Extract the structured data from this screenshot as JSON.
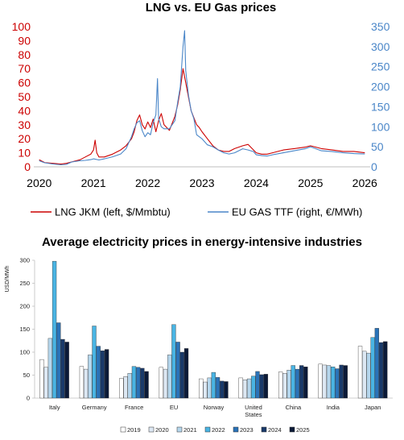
{
  "chart_data": [
    {
      "type": "line",
      "title": "LNG vs. EU Gas prices",
      "x_ticks": [
        "2020",
        "2021",
        "2022",
        "2023",
        "2024",
        "2025",
        "2026"
      ],
      "xlim": [
        2019.9,
        2026.1
      ],
      "y_left_ticks": [
        "0",
        "10",
        "20",
        "30",
        "40",
        "50",
        "60",
        "70",
        "80",
        "90",
        "100"
      ],
      "ylim_left": [
        0,
        100
      ],
      "y_right_ticks": [
        "0",
        "50",
        "100",
        "150",
        "200",
        "250",
        "300",
        "350"
      ],
      "ylim_right": [
        0,
        350
      ],
      "colors": {
        "left": "#cc0000",
        "right": "#4a86c8"
      },
      "grid": false,
      "legend_position": "bottom",
      "series": [
        {
          "name": "LNG JKM (left, $/Mmbtu)",
          "axis": "left",
          "color": "#cc0000",
          "x": [
            2020.0,
            2020.1,
            2020.25,
            2020.4,
            2020.5,
            2020.6,
            2020.75,
            2020.85,
            2020.95,
            2021.0,
            2021.03,
            2021.06,
            2021.1,
            2021.2,
            2021.35,
            2021.5,
            2021.6,
            2021.7,
            2021.75,
            2021.8,
            2021.85,
            2021.9,
            2021.95,
            2022.0,
            2022.05,
            2022.1,
            2022.15,
            2022.2,
            2022.25,
            2022.3,
            2022.4,
            2022.5,
            2022.55,
            2022.6,
            2022.65,
            2022.7,
            2022.75,
            2022.8,
            2022.85,
            2022.9,
            2022.95,
            2023.0,
            2023.1,
            2023.2,
            2023.3,
            2023.4,
            2023.5,
            2023.6,
            2023.75,
            2023.85,
            2023.95,
            2024.0,
            2024.1,
            2024.2,
            2024.3,
            2024.5,
            2024.7,
            2024.9,
            2025.0,
            2025.1,
            2025.2,
            2025.4,
            2025.6,
            2025.8,
            2026.0
          ],
          "y": [
            5,
            3,
            2.5,
            2,
            2.5,
            3.5,
            5,
            7,
            9,
            12,
            19,
            10,
            7,
            7,
            9,
            12,
            15,
            20,
            25,
            33,
            37,
            30,
            27,
            32,
            28,
            34,
            25,
            33,
            38,
            30,
            26,
            36,
            44,
            55,
            70,
            60,
            50,
            40,
            35,
            30,
            28,
            25,
            20,
            15,
            12,
            11,
            11,
            13,
            15,
            16,
            12,
            10,
            9,
            9,
            10,
            12,
            13,
            14,
            15,
            14,
            13,
            12,
            11,
            11,
            10
          ]
        },
        {
          "name": "EU GAS TTF (right, €/MWh)",
          "axis": "right",
          "color": "#4a86c8",
          "x": [
            2020.0,
            2020.1,
            2020.25,
            2020.4,
            2020.5,
            2020.6,
            2020.75,
            2020.85,
            2020.95,
            2021.0,
            2021.1,
            2021.2,
            2021.35,
            2021.5,
            2021.6,
            2021.7,
            2021.75,
            2021.8,
            2021.85,
            2021.9,
            2021.95,
            2022.0,
            2022.05,
            2022.1,
            2022.15,
            2022.18,
            2022.2,
            2022.25,
            2022.3,
            2022.4,
            2022.5,
            2022.55,
            2022.6,
            2022.65,
            2022.68,
            2022.7,
            2022.75,
            2022.8,
            2022.85,
            2022.9,
            2022.95,
            2023.0,
            2023.1,
            2023.2,
            2023.3,
            2023.4,
            2023.5,
            2023.6,
            2023.75,
            2023.85,
            2023.95,
            2024.0,
            2024.1,
            2024.2,
            2024.3,
            2024.5,
            2024.7,
            2024.9,
            2025.0,
            2025.1,
            2025.2,
            2025.4,
            2025.6,
            2025.8,
            2026.0
          ],
          "y": [
            15,
            10,
            7,
            5,
            6,
            12,
            15,
            16,
            18,
            20,
            17,
            20,
            25,
            32,
            45,
            75,
            95,
            110,
            115,
            90,
            75,
            85,
            80,
            110,
            130,
            220,
            120,
            100,
            95,
            95,
            115,
            160,
            200,
            300,
            340,
            240,
            180,
            140,
            120,
            80,
            75,
            70,
            55,
            50,
            42,
            35,
            32,
            35,
            45,
            42,
            38,
            30,
            28,
            27,
            30,
            35,
            40,
            45,
            50,
            45,
            40,
            38,
            35,
            33,
            32
          ]
        }
      ]
    },
    {
      "type": "bar",
      "title": "Average electricity prices in energy-intensive industries",
      "ylabel": "USD/MWh",
      "xlabel": "",
      "ylim": [
        0,
        300
      ],
      "y_ticks": [
        "0",
        "50",
        "100",
        "150",
        "200",
        "250",
        "300"
      ],
      "grid": false,
      "legend_position": "bottom",
      "categories": [
        "Italy",
        "Germany",
        "France",
        "EU",
        "Norway",
        "United States",
        "China",
        "India",
        "Japan"
      ],
      "series": [
        {
          "name": "2019",
          "color": "#ffffff",
          "values": [
            84,
            69,
            43,
            67,
            42,
            44,
            57,
            74,
            113
          ]
        },
        {
          "name": "2020",
          "color": "#dde8f3",
          "values": [
            67,
            63,
            47,
            63,
            35,
            40,
            54,
            72,
            102
          ]
        },
        {
          "name": "2021",
          "color": "#b5d6ec",
          "values": [
            130,
            94,
            54,
            94,
            44,
            42,
            61,
            71,
            98
          ]
        },
        {
          "name": "2022",
          "color": "#49b4e3",
          "values": [
            298,
            157,
            69,
            160,
            56,
            48,
            71,
            68,
            132
          ]
        },
        {
          "name": "2023",
          "color": "#2a73b8",
          "values": [
            164,
            113,
            67,
            122,
            45,
            58,
            63,
            64,
            152
          ]
        },
        {
          "name": "2024",
          "color": "#1a3a6a",
          "values": [
            128,
            103,
            65,
            100,
            37,
            51,
            71,
            72,
            121
          ]
        },
        {
          "name": "2025",
          "color": "#0b1a38",
          "values": [
            122,
            106,
            58,
            108,
            36,
            52,
            68,
            71,
            123
          ]
        }
      ]
    }
  ]
}
